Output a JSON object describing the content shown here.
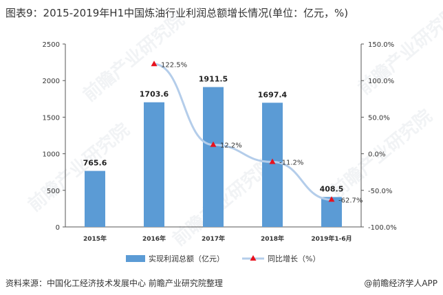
{
  "title": "图表9：2015-2019年H1中国炼油行业利润总额增长情况(单位：亿元，%)",
  "source": "资料来源：中国化工经济技术发展中心 前瞻产业研究院整理",
  "brand": "@前瞻经济学人APP",
  "watermark": "前瞻产业研究院",
  "colors": {
    "bar": "#5b9bd5",
    "line": "#b4cdea",
    "marker": "#e8111d"
  },
  "chart_data": {
    "type": "bar",
    "categories": [
      "2015年",
      "2016年",
      "2017年",
      "2018年",
      "2019年1-6月"
    ],
    "series": [
      {
        "name": "实现利润总额（亿元）",
        "type": "bar",
        "axis": "left",
        "values": [
          765.6,
          1703.6,
          1911.5,
          1697.4,
          408.5
        ],
        "labels": [
          "765.6",
          "1703.6",
          "1911.5",
          "1697.4",
          "408.5"
        ]
      },
      {
        "name": "同比增长（%）",
        "type": "line",
        "axis": "right",
        "values": [
          null,
          122.5,
          12.2,
          -11.2,
          -62.7
        ],
        "labels": [
          "",
          "122.5%",
          "12.2%",
          "-11.2%",
          "-62.7%"
        ]
      }
    ],
    "y_left": {
      "min": 0,
      "max": 2500,
      "ticks": [
        "0",
        "500",
        "1000",
        "1500",
        "2000",
        "2500"
      ]
    },
    "y_right": {
      "min": -100,
      "max": 150,
      "ticks": [
        "-100.0%",
        "-50.0%",
        "0.0%",
        "50.0%",
        "100.0%",
        "150.0%"
      ]
    },
    "legend": [
      "实现利润总额（亿元）",
      "同比增长（%）"
    ],
    "legend_position": "bottom",
    "grid": false
  }
}
